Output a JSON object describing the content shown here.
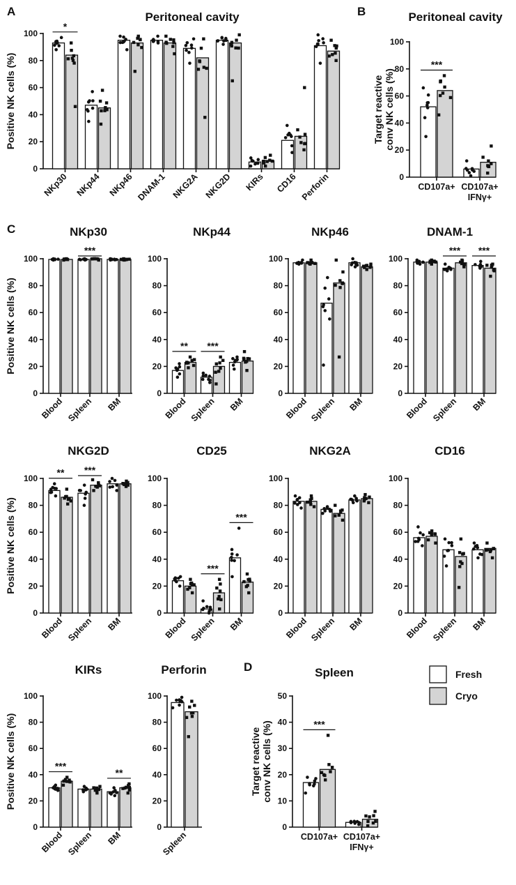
{
  "legend": {
    "fresh": "Fresh",
    "cryo": "Cryo"
  },
  "chart_data": [
    {
      "id": "A",
      "panel_label": "A",
      "type": "bar",
      "title": "Peritoneal cavity",
      "ylabel": "Positive NK cells (%)",
      "ylim": [
        0,
        100
      ],
      "yticks": [
        0,
        20,
        40,
        60,
        80,
        100
      ],
      "categories": [
        "NKp30",
        "NKp44",
        "NKp46",
        "DNAM-1",
        "NKG2A",
        "NKG2D",
        "KIRs",
        "CD16",
        "Perforin"
      ],
      "series": [
        {
          "name": "Fresh",
          "values": [
            93,
            47,
            95,
            95,
            89,
            95,
            5,
            21,
            91
          ],
          "ranges": [
            [
              88,
              97
            ],
            [
              35,
              57
            ],
            [
              88,
              98
            ],
            [
              93,
              98
            ],
            [
              78,
              96
            ],
            [
              92,
              97
            ],
            [
              2,
              8
            ],
            [
              12,
              32
            ],
            [
              78,
              99
            ]
          ]
        },
        {
          "name": "Cryo",
          "values": [
            84,
            45,
            93,
            93,
            82,
            93,
            6,
            24,
            87
          ],
          "ranges": [
            [
              46,
              93
            ],
            [
              33,
              58
            ],
            [
              72,
              98
            ],
            [
              85,
              98
            ],
            [
              38,
              96
            ],
            [
              65,
              99
            ],
            [
              2,
              10
            ],
            [
              14,
              60
            ],
            [
              80,
              95
            ]
          ]
        }
      ],
      "annotations": [
        {
          "category": "NKp30",
          "label": "*"
        }
      ]
    },
    {
      "id": "B",
      "panel_label": "B",
      "type": "bar",
      "title": "Peritoneal cavity",
      "ylabel": "Target reactive conv NK cells (%)",
      "ylim": [
        0,
        100
      ],
      "yticks": [
        0,
        20,
        40,
        60,
        80,
        100
      ],
      "categories": [
        "CD107a+",
        "CD107a+ IFNγ+"
      ],
      "series": [
        {
          "name": "Fresh",
          "values": [
            52,
            6
          ],
          "ranges": [
            [
              30,
              66
            ],
            [
              1,
              12
            ]
          ]
        },
        {
          "name": "Cryo",
          "values": [
            64,
            11
          ],
          "ranges": [
            [
              46,
              75
            ],
            [
              3,
              23
            ]
          ]
        }
      ],
      "annotations": [
        {
          "category": "CD107a+",
          "label": "***"
        }
      ]
    },
    {
      "id": "C1",
      "panel_label": "C",
      "type": "bar",
      "title": "NKp30",
      "ylabel": "Positive NK cells (%)",
      "ylim": [
        0,
        100
      ],
      "yticks": [
        0,
        20,
        40,
        60,
        80,
        100
      ],
      "categories": [
        "Blood",
        "Spleen",
        "BM"
      ],
      "series": [
        {
          "name": "Fresh",
          "values": [
            99.5,
            99.5,
            99.5
          ],
          "ranges": [
            [
              99,
              100
            ],
            [
              99,
              100
            ],
            [
              99,
              100
            ]
          ]
        },
        {
          "name": "Cryo",
          "values": [
            99.5,
            100,
            99.5
          ],
          "ranges": [
            [
              99,
              100
            ],
            [
              99,
              100
            ],
            [
              99,
              100
            ]
          ]
        }
      ],
      "annotations": [
        {
          "category": "Spleen",
          "label": "***"
        }
      ]
    },
    {
      "id": "C2",
      "type": "bar",
      "title": "NKp44",
      "ylim": [
        0,
        100
      ],
      "yticks": [
        0,
        20,
        40,
        60,
        80,
        100
      ],
      "categories": [
        "Blood",
        "Spleen",
        "BM"
      ],
      "series": [
        {
          "name": "Fresh",
          "values": [
            17,
            12,
            23
          ],
          "ranges": [
            [
              12,
              22
            ],
            [
              8,
              15
            ],
            [
              18,
              27
            ]
          ]
        },
        {
          "name": "Cryo",
          "values": [
            23,
            20,
            24
          ],
          "ranges": [
            [
              19,
              27
            ],
            [
              7,
              27
            ],
            [
              17,
              31
            ]
          ]
        }
      ],
      "annotations": [
        {
          "category": "Blood",
          "label": "**"
        },
        {
          "category": "Spleen",
          "label": "***"
        }
      ]
    },
    {
      "id": "C3",
      "type": "bar",
      "title": "NKp46",
      "ylim": [
        0,
        100
      ],
      "yticks": [
        0,
        20,
        40,
        60,
        80,
        100
      ],
      "categories": [
        "Blood",
        "Spleen",
        "BM"
      ],
      "series": [
        {
          "name": "Fresh",
          "values": [
            97,
            67,
            97
          ],
          "ranges": [
            [
              96,
              99
            ],
            [
              21,
              86
            ],
            [
              94,
              100
            ]
          ]
        },
        {
          "name": "Cryo",
          "values": [
            97,
            82,
            94
          ],
          "ranges": [
            [
              96,
              99
            ],
            [
              27,
              99
            ],
            [
              92,
              96
            ]
          ]
        }
      ],
      "annotations": []
    },
    {
      "id": "C4",
      "type": "bar",
      "title": "DNAM-1",
      "ylim": [
        0,
        100
      ],
      "yticks": [
        0,
        20,
        40,
        60,
        80,
        100
      ],
      "categories": [
        "Blood",
        "Spleen",
        "BM"
      ],
      "series": [
        {
          "name": "Fresh",
          "values": [
            97.5,
            93,
            95
          ],
          "ranges": [
            [
              96,
              99
            ],
            [
              91,
              96
            ],
            [
              93,
              98
            ]
          ]
        },
        {
          "name": "Cryo",
          "values": [
            97.5,
            97,
            93
          ],
          "ranges": [
            [
              96,
              99
            ],
            [
              94,
              99
            ],
            [
              87,
              96
            ]
          ]
        }
      ],
      "annotations": [
        {
          "category": "Spleen",
          "label": "***"
        },
        {
          "category": "BM",
          "label": "***"
        }
      ]
    },
    {
      "id": "C5",
      "type": "bar",
      "title": "NKG2D",
      "ylabel": "Positive NK cells (%)",
      "ylim": [
        0,
        100
      ],
      "yticks": [
        0,
        20,
        40,
        60,
        80,
        100
      ],
      "categories": [
        "Blood",
        "Spleen",
        "BM"
      ],
      "series": [
        {
          "name": "Fresh",
          "values": [
            91,
            89,
            96
          ],
          "ranges": [
            [
              87,
              96
            ],
            [
              80,
              95
            ],
            [
              91,
              100
            ]
          ]
        },
        {
          "name": "Cryo",
          "values": [
            86,
            95,
            96
          ],
          "ranges": [
            [
              81,
              92
            ],
            [
              91,
              99
            ],
            [
              94,
              98
            ]
          ]
        }
      ],
      "annotations": [
        {
          "category": "Blood",
          "label": "**"
        },
        {
          "category": "Spleen",
          "label": "***"
        }
      ]
    },
    {
      "id": "C6",
      "type": "bar",
      "title": "CD25",
      "ylim": [
        0,
        100
      ],
      "yticks": [
        0,
        20,
        40,
        60,
        80,
        100
      ],
      "categories": [
        "Blood",
        "Spleen",
        "BM"
      ],
      "series": [
        {
          "name": "Fresh",
          "values": [
            24,
            3,
            41
          ],
          "ranges": [
            [
              20,
              27
            ],
            [
              0,
              9
            ],
            [
              27,
              63
            ]
          ]
        },
        {
          "name": "Cryo",
          "values": [
            20,
            15,
            23
          ],
          "ranges": [
            [
              15,
              25
            ],
            [
              3,
              25
            ],
            [
              15,
              29
            ]
          ]
        }
      ],
      "annotations": [
        {
          "category": "Spleen",
          "label": "***"
        },
        {
          "category": "BM",
          "label": "***"
        }
      ]
    },
    {
      "id": "C7",
      "type": "bar",
      "title": "NKG2A",
      "ylim": [
        0,
        100
      ],
      "yticks": [
        0,
        20,
        40,
        60,
        80,
        100
      ],
      "categories": [
        "Blood",
        "Spleen",
        "BM"
      ],
      "series": [
        {
          "name": "Fresh",
          "values": [
            83,
            77,
            84
          ],
          "ranges": [
            [
              78,
              87
            ],
            [
              74,
              79
            ],
            [
              82,
              87
            ]
          ]
        },
        {
          "name": "Cryo",
          "values": [
            83,
            74,
            85
          ],
          "ranges": [
            [
              79,
              87
            ],
            [
              69,
              80
            ],
            [
              82,
              88
            ]
          ]
        }
      ],
      "annotations": []
    },
    {
      "id": "C8",
      "type": "bar",
      "title": "CD16",
      "ylim": [
        0,
        100
      ],
      "yticks": [
        0,
        20,
        40,
        60,
        80,
        100
      ],
      "categories": [
        "Blood",
        "Spleen",
        "BM"
      ],
      "series": [
        {
          "name": "Fresh",
          "values": [
            56,
            47,
            47
          ],
          "ranges": [
            [
              50,
              64
            ],
            [
              35,
              55
            ],
            [
              41,
              52
            ]
          ]
        },
        {
          "name": "Cryo",
          "values": [
            57,
            42,
            48
          ],
          "ranges": [
            [
              52,
              61
            ],
            [
              19,
              55
            ],
            [
              41,
              52
            ]
          ]
        }
      ],
      "annotations": []
    },
    {
      "id": "C9",
      "type": "bar",
      "title": "KIRs",
      "ylabel": "Positive NK cells (%)",
      "ylim": [
        0,
        100
      ],
      "yticks": [
        0,
        20,
        40,
        60,
        80,
        100
      ],
      "categories": [
        "Blood",
        "Spleen",
        "BM"
      ],
      "series": [
        {
          "name": "Fresh",
          "values": [
            30,
            29,
            27
          ],
          "ranges": [
            [
              28,
              32
            ],
            [
              27,
              31
            ],
            [
              24,
              30
            ]
          ]
        },
        {
          "name": "Cryo",
          "values": [
            35,
            29,
            30
          ],
          "ranges": [
            [
              32,
              38
            ],
            [
              26,
              31
            ],
            [
              26,
              33
            ]
          ]
        }
      ],
      "annotations": [
        {
          "category": "Blood",
          "label": "***"
        },
        {
          "category": "BM",
          "label": "**"
        }
      ]
    },
    {
      "id": "C10",
      "type": "bar",
      "title": "Perforin",
      "ylim": [
        0,
        100
      ],
      "yticks": [
        0,
        20,
        40,
        60,
        80,
        100
      ],
      "categories": [
        "Spleen"
      ],
      "series": [
        {
          "name": "Fresh",
          "values": [
            95
          ],
          "ranges": [
            [
              91,
              99
            ]
          ]
        },
        {
          "name": "Cryo",
          "values": [
            88
          ],
          "ranges": [
            [
              69,
              96
            ]
          ]
        }
      ],
      "annotations": []
    },
    {
      "id": "D",
      "panel_label": "D",
      "type": "bar",
      "title": "Spleen",
      "ylabel": "Target reactive conv NK cells (%)",
      "ylim": [
        0,
        50
      ],
      "yticks": [
        0,
        10,
        20,
        30,
        40,
        50
      ],
      "categories": [
        "CD107a+",
        "CD107a+ IFNγ+"
      ],
      "series": [
        {
          "name": "Fresh",
          "values": [
            17,
            1.8
          ],
          "ranges": [
            [
              13,
              19
            ],
            [
              1,
              2.2
            ]
          ]
        },
        {
          "name": "Cryo",
          "values": [
            22,
            3
          ],
          "ranges": [
            [
              18,
              35
            ],
            [
              0.5,
              6
            ]
          ]
        }
      ],
      "annotations": [
        {
          "category": "CD107a+",
          "label": "***"
        }
      ]
    }
  ]
}
